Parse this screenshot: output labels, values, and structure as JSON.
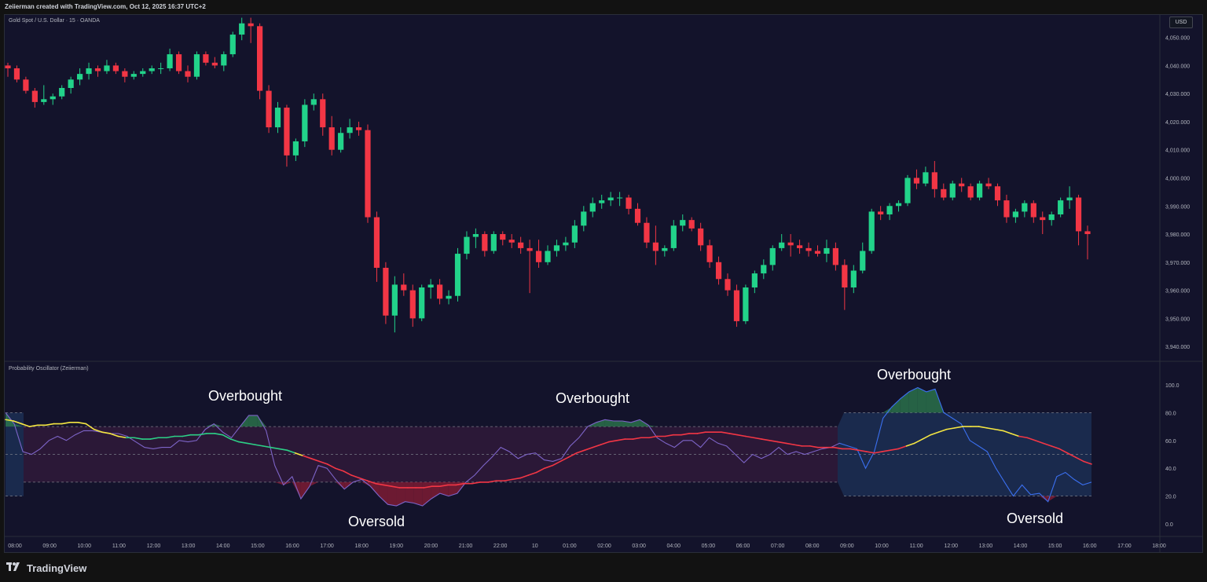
{
  "header": {
    "attribution": "Zeiierman created with TradingView.com, Oct 12, 2025 16:37 UTC+2"
  },
  "main_pane": {
    "symbol_title": "Gold Spot / U.S. Dollar · 15 · OANDA",
    "currency_button": "USD",
    "price_ticks": [
      "4,050.000",
      "4,040.000",
      "4,030.000",
      "4,020.000",
      "4,010.000",
      "4,000.000",
      "3,990.000",
      "3,980.000",
      "3,970.000",
      "3,960.000",
      "3,950.000",
      "3,940.000"
    ],
    "colors": {
      "up": "#22d38a",
      "down": "#f23645"
    }
  },
  "oscillator_pane": {
    "title": "Probability Oscillator (Zeiierman)",
    "value_ticks": [
      "100.0",
      "80.0",
      "60.0",
      "40.0",
      "20.0",
      "0.0"
    ],
    "annotations": [
      "Overbought",
      "Overbought",
      "Overbought",
      "Oversold",
      "Oversold"
    ]
  },
  "time_axis": [
    "08:00",
    "09:00",
    "10:00",
    "11:00",
    "12:00",
    "13:00",
    "14:00",
    "15:00",
    "16:00",
    "17:00",
    "18:00",
    "19:00",
    "20:00",
    "21:00",
    "22:00",
    "10",
    "01:00",
    "02:00",
    "03:00",
    "04:00",
    "05:00",
    "06:00",
    "07:00",
    "08:00",
    "09:00",
    "10:00",
    "11:00",
    "12:00",
    "13:00",
    "14:00",
    "15:00",
    "16:00",
    "17:00",
    "18:00"
  ],
  "footer": {
    "brand": "TradingView"
  },
  "chart_data": {
    "type": "candlestick",
    "price_range": [
      3935,
      4058
    ],
    "candles": [
      [
        4040,
        4041,
        4036,
        4039
      ],
      [
        4039,
        4040,
        4034,
        4035
      ],
      [
        4035,
        4036,
        4030,
        4031
      ],
      [
        4031,
        4032,
        4025,
        4027
      ],
      [
        4027,
        4033,
        4026,
        4028
      ],
      [
        4028,
        4030,
        4026,
        4029
      ],
      [
        4029,
        4033,
        4028,
        4032
      ],
      [
        4032,
        4036,
        4030,
        4035
      ],
      [
        4035,
        4039,
        4033,
        4037
      ],
      [
        4037,
        4041,
        4035,
        4039
      ],
      [
        4039,
        4040,
        4036,
        4038
      ],
      [
        4038,
        4042,
        4037,
        4040
      ],
      [
        4040,
        4041,
        4037,
        4038
      ],
      [
        4038,
        4039,
        4034,
        4036
      ],
      [
        4036,
        4038,
        4035,
        4037
      ],
      [
        4037,
        4039,
        4036,
        4038
      ],
      [
        4038,
        4040,
        4037,
        4039
      ],
      [
        4039,
        4041,
        4037,
        4039
      ],
      [
        4039,
        4046,
        4038,
        4044
      ],
      [
        4044,
        4045,
        4037,
        4038
      ],
      [
        4038,
        4040,
        4034,
        4036
      ],
      [
        4036,
        4045,
        4035,
        4044
      ],
      [
        4044,
        4045,
        4040,
        4041
      ],
      [
        4041,
        4043,
        4039,
        4040
      ],
      [
        4040,
        4045,
        4038,
        4044
      ],
      [
        4044,
        4052,
        4043,
        4051
      ],
      [
        4051,
        4057,
        4049,
        4055
      ],
      [
        4055,
        4057,
        4048,
        4054
      ],
      [
        4054,
        4055,
        4028,
        4031
      ],
      [
        4031,
        4033,
        4016,
        4018
      ],
      [
        4018,
        4027,
        4016,
        4025
      ],
      [
        4025,
        4026,
        4004,
        4008
      ],
      [
        4008,
        4014,
        4006,
        4013
      ],
      [
        4013,
        4028,
        4011,
        4026
      ],
      [
        4026,
        4030,
        4024,
        4028
      ],
      [
        4028,
        4030,
        4015,
        4018
      ],
      [
        4018,
        4022,
        4008,
        4010
      ],
      [
        4010,
        4018,
        4009,
        4016
      ],
      [
        4016,
        4021,
        4014,
        4018
      ],
      [
        4018,
        4020,
        4015,
        4017
      ],
      [
        4017,
        4019,
        3984,
        3986
      ],
      [
        3986,
        3988,
        3963,
        3968
      ],
      [
        3968,
        3970,
        3948,
        3951
      ],
      [
        3951,
        3965,
        3945,
        3962
      ],
      [
        3962,
        3966,
        3958,
        3960
      ],
      [
        3960,
        3962,
        3947,
        3950
      ],
      [
        3950,
        3962,
        3949,
        3961
      ],
      [
        3961,
        3964,
        3957,
        3962
      ],
      [
        3962,
        3964,
        3955,
        3957
      ],
      [
        3957,
        3960,
        3955,
        3958
      ],
      [
        3958,
        3975,
        3956,
        3973
      ],
      [
        3973,
        3981,
        3971,
        3979
      ],
      [
        3979,
        3982,
        3975,
        3980
      ],
      [
        3980,
        3981,
        3972,
        3974
      ],
      [
        3974,
        3981,
        3973,
        3980
      ],
      [
        3980,
        3981,
        3976,
        3978
      ],
      [
        3978,
        3980,
        3975,
        3977
      ],
      [
        3977,
        3979,
        3973,
        3975
      ],
      [
        3975,
        3978,
        3959,
        3974
      ],
      [
        3974,
        3978,
        3968,
        3970
      ],
      [
        3970,
        3976,
        3969,
        3974
      ],
      [
        3974,
        3978,
        3972,
        3976
      ],
      [
        3976,
        3979,
        3974,
        3977
      ],
      [
        3977,
        3985,
        3975,
        3983
      ],
      [
        3983,
        3990,
        3981,
        3988
      ],
      [
        3988,
        3993,
        3986,
        3991
      ],
      [
        3991,
        3994,
        3989,
        3992
      ],
      [
        3992,
        3995,
        3990,
        3993
      ],
      [
        3993,
        3995,
        3990,
        3993
      ],
      [
        3993,
        3994,
        3987,
        3989
      ],
      [
        3989,
        3991,
        3983,
        3984
      ],
      [
        3984,
        3986,
        3975,
        3977
      ],
      [
        3977,
        3983,
        3969,
        3974
      ],
      [
        3974,
        3976,
        3972,
        3975
      ],
      [
        3975,
        3985,
        3974,
        3983
      ],
      [
        3983,
        3987,
        3981,
        3985
      ],
      [
        3985,
        3986,
        3981,
        3982
      ],
      [
        3982,
        3984,
        3974,
        3976
      ],
      [
        3976,
        3978,
        3968,
        3970
      ],
      [
        3970,
        3972,
        3962,
        3964
      ],
      [
        3964,
        3966,
        3958,
        3960
      ],
      [
        3960,
        3962,
        3947,
        3949
      ],
      [
        3949,
        3962,
        3948,
        3961
      ],
      [
        3961,
        3967,
        3959,
        3966
      ],
      [
        3966,
        3971,
        3964,
        3969
      ],
      [
        3969,
        3976,
        3967,
        3975
      ],
      [
        3975,
        3980,
        3974,
        3977
      ],
      [
        3977,
        3980,
        3972,
        3976
      ],
      [
        3976,
        3978,
        3973,
        3975
      ],
      [
        3975,
        3977,
        3972,
        3974
      ],
      [
        3974,
        3976,
        3972,
        3973
      ],
      [
        3973,
        3978,
        3970,
        3975
      ],
      [
        3975,
        3977,
        3967,
        3969
      ],
      [
        3969,
        3971,
        3953,
        3961
      ],
      [
        3961,
        3969,
        3959,
        3967
      ],
      [
        3967,
        3977,
        3966,
        3974
      ],
      [
        3974,
        3989,
        3973,
        3988
      ],
      [
        3988,
        3990,
        3985,
        3987
      ],
      [
        3987,
        3991,
        3985,
        3990
      ],
      [
        3990,
        3992,
        3988,
        3991
      ],
      [
        3991,
        4001,
        3990,
        4000
      ],
      [
        4000,
        4003,
        3996,
        3998
      ],
      [
        3998,
        4004,
        3997,
        4002
      ],
      [
        4002,
        4006,
        3993,
        3996
      ],
      [
        3996,
        3998,
        3992,
        3993
      ],
      [
        3993,
        3999,
        3992,
        3998
      ],
      [
        3998,
        4000,
        3995,
        3997
      ],
      [
        3997,
        3998,
        3992,
        3993
      ],
      [
        3993,
        3999,
        3992,
        3998
      ],
      [
        3998,
        4000,
        3996,
        3997
      ],
      [
        3997,
        3998,
        3990,
        3992
      ],
      [
        3992,
        3994,
        3984,
        3986
      ],
      [
        3986,
        3989,
        3984,
        3988
      ],
      [
        3988,
        3992,
        3986,
        3991
      ],
      [
        3991,
        3992,
        3984,
        3986
      ],
      [
        3986,
        3988,
        3980,
        3985
      ],
      [
        3985,
        3988,
        3983,
        3987
      ],
      [
        3987,
        3993,
        3986,
        3992
      ],
      [
        3992,
        3997,
        3989,
        3993
      ],
      [
        3993,
        3994,
        3976,
        3981
      ],
      [
        3981,
        3983,
        3971,
        3980
      ]
    ],
    "osc_zone_upper": 70,
    "osc_zone_lower": 30,
    "osc_band_upper": 80,
    "osc_band_lower": 20,
    "osc_mid": 50,
    "oscillator": [
      80,
      72,
      52,
      50,
      54,
      60,
      63,
      60,
      64,
      67,
      67,
      66,
      65,
      65,
      63,
      59,
      55,
      54,
      55,
      55,
      60,
      59,
      60,
      68,
      72,
      66,
      62,
      70,
      78,
      78,
      67,
      42,
      28,
      34,
      18,
      27,
      42,
      40,
      32,
      25,
      30,
      32,
      27,
      20,
      14,
      13,
      16,
      15,
      13,
      18,
      22,
      20,
      22,
      30,
      35,
      42,
      48,
      55,
      52,
      47,
      50,
      51,
      46,
      45,
      47,
      56,
      62,
      70,
      73,
      75,
      74,
      74,
      73,
      75,
      71,
      62,
      58,
      55,
      60,
      60,
      55,
      62,
      58,
      56,
      50,
      44,
      50,
      47,
      50,
      55,
      50,
      52,
      50,
      52,
      54,
      55,
      58,
      56,
      54,
      40,
      52,
      76,
      84,
      90,
      95,
      98,
      95,
      97,
      80,
      76,
      72,
      60,
      56,
      52,
      40,
      30,
      20,
      28,
      21,
      22,
      16,
      34,
      37,
      32,
      28,
      30
    ],
    "trend": [
      75,
      74,
      72,
      70,
      71,
      71,
      72,
      72,
      73,
      73,
      72,
      68,
      66,
      65,
      63,
      62,
      62,
      61,
      61,
      62,
      62,
      63,
      63,
      64,
      64,
      65,
      65,
      64,
      61,
      59,
      58,
      57,
      56,
      55,
      54,
      53,
      51,
      49,
      47,
      45,
      43,
      40,
      38,
      35,
      33,
      31,
      29,
      28,
      27,
      26,
      26,
      26,
      26,
      27,
      27,
      28,
      28,
      29,
      29,
      30,
      30,
      31,
      31,
      32,
      33,
      35,
      37,
      40,
      42,
      45,
      48,
      51,
      53,
      55,
      57,
      59,
      60,
      61,
      61,
      62,
      62,
      63,
      63,
      64,
      64,
      65,
      65,
      66,
      66,
      66,
      65,
      64,
      63,
      62,
      61,
      60,
      59,
      58,
      57,
      56,
      56,
      55,
      55,
      55,
      54,
      54,
      53,
      52,
      51,
      52,
      53,
      54,
      56,
      58,
      61,
      64,
      66,
      68,
      69,
      70,
      70,
      70,
      69,
      68,
      67,
      65,
      63,
      62,
      60,
      58,
      56,
      54,
      51,
      48,
      45,
      43
    ]
  }
}
